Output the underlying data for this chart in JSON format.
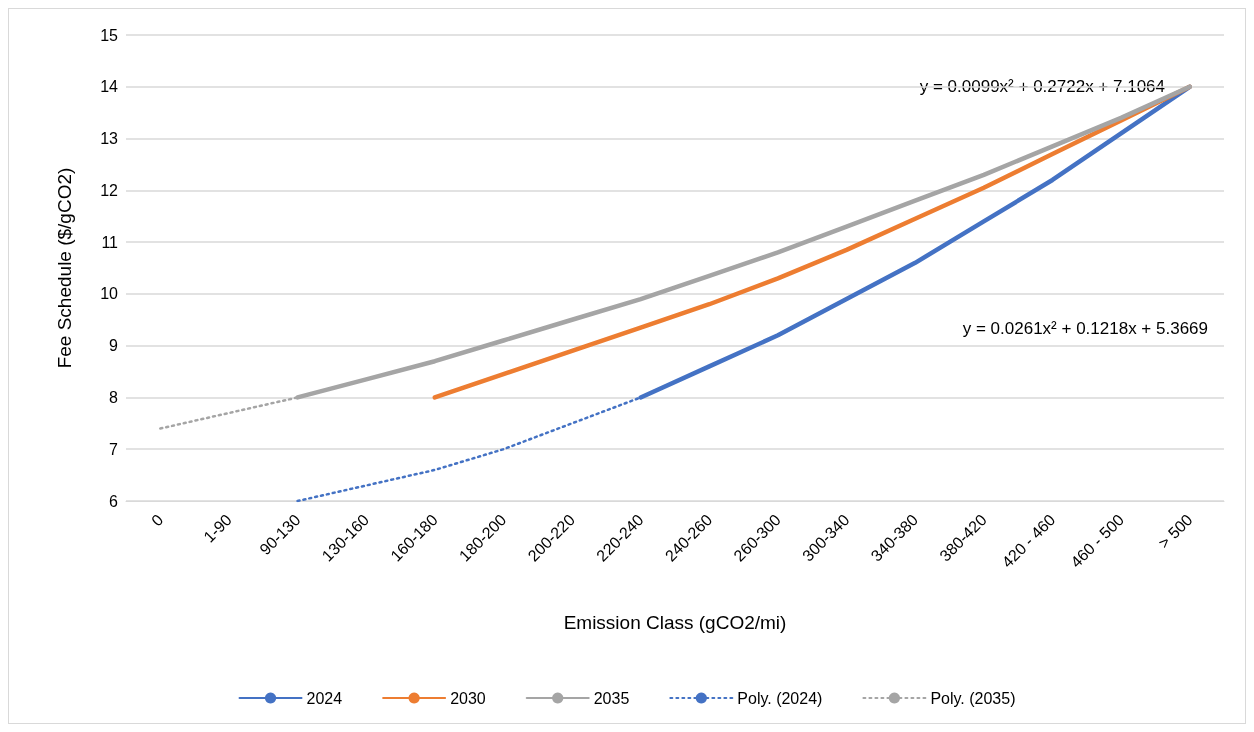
{
  "chart_data": {
    "type": "line",
    "xlabel": "Emission Class (gCO2/mi)",
    "ylabel": "Fee Schedule ($/gCO2)",
    "categories": [
      "0",
      "1-90",
      "90-130",
      "130-160",
      "160-180",
      "180-200",
      "200-220",
      "220-240",
      "240-260",
      "260-300",
      "300-340",
      "340-380",
      "380-420",
      "420 - 460",
      "460 - 500",
      "> 500"
    ],
    "series": [
      {
        "name": "2024",
        "color": "#4472c4",
        "values": [
          null,
          null,
          null,
          null,
          null,
          null,
          null,
          8.0,
          8.6,
          9.2,
          9.9,
          10.6,
          11.4,
          12.2,
          13.1,
          14.0
        ]
      },
      {
        "name": "2030",
        "color": "#ed7d31",
        "values": [
          null,
          null,
          null,
          null,
          8.0,
          8.45,
          8.9,
          9.35,
          9.8,
          10.3,
          10.85,
          11.45,
          12.05,
          12.7,
          13.35,
          14.0
        ]
      },
      {
        "name": "2035",
        "color": "#a5a5a5",
        "values": [
          null,
          null,
          8.0,
          8.35,
          8.7,
          9.1,
          9.5,
          9.9,
          10.35,
          10.8,
          11.3,
          11.8,
          12.3,
          12.85,
          13.4,
          14.0
        ]
      },
      {
        "name": "Poly. (2024)",
        "color": "#4472c4",
        "line_style": "dotted",
        "values": [
          null,
          null,
          6.0,
          6.3,
          6.6,
          7.0,
          7.5,
          8.0,
          8.6,
          9.2,
          9.9,
          10.6,
          11.4,
          12.2,
          13.1,
          14.0
        ]
      },
      {
        "name": "Poly. (2035)",
        "color": "#a5a5a5",
        "line_style": "dotted",
        "values": [
          7.4,
          7.7,
          8.0,
          8.35,
          8.7,
          9.1,
          9.5,
          9.9,
          10.35,
          10.8,
          11.3,
          11.8,
          12.3,
          12.85,
          13.4,
          14.0
        ]
      }
    ],
    "ylim": [
      6,
      15
    ],
    "yticks": [
      6,
      7,
      8,
      9,
      10,
      11,
      12,
      13,
      14,
      15
    ],
    "grid": "y",
    "legend": "bottom",
    "marker": "none",
    "line_style": "solid",
    "annotations": [
      "y = 0.0099x² + 0.2722x + 7.1064",
      "y = 0.0261x² + 0.1218x + 5.3669"
    ]
  }
}
